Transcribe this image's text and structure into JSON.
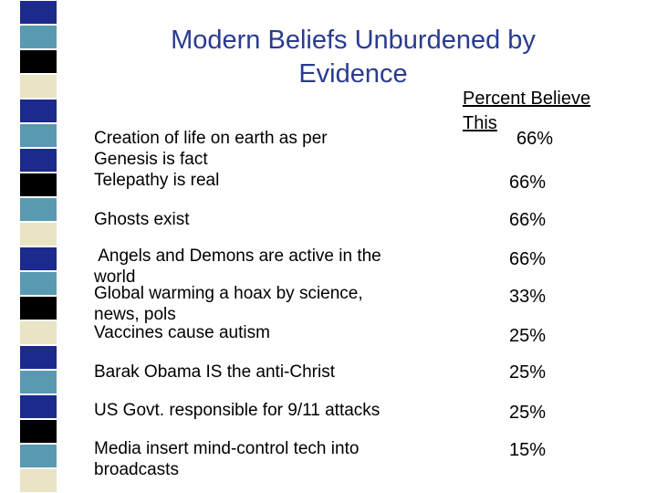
{
  "title": [
    "Modern Beliefs Unburdened by",
    "Evidence"
  ],
  "header": [
    "Percent Believe",
    "This"
  ],
  "rows": [
    {
      "text": [
        "Creation of life on earth as per",
        "Genesis is fact"
      ],
      "percent": "66%"
    },
    {
      "text": [
        "Telepathy is real"
      ],
      "percent": "66%"
    },
    {
      "text": [
        "Ghosts exist"
      ],
      "percent": "66%"
    },
    {
      "text": [
        " Angels and Demons are active in the",
        "world"
      ],
      "percent": "66%"
    },
    {
      "text": [
        "Global warming a hoax by science,",
        "news, pols"
      ],
      "percent": "33%"
    },
    {
      "text": [
        "Vaccines cause autism"
      ],
      "percent": "25%"
    },
    {
      "text": [
        "Barak Obama IS the anti-Christ"
      ],
      "percent": "25%"
    },
    {
      "text": [
        "US Govt. responsible for 9/11 attacks"
      ],
      "percent": "25%"
    },
    {
      "text": [
        "Media insert mind-control tech into",
        "broadcasts"
      ],
      "percent": "15%"
    }
  ]
}
